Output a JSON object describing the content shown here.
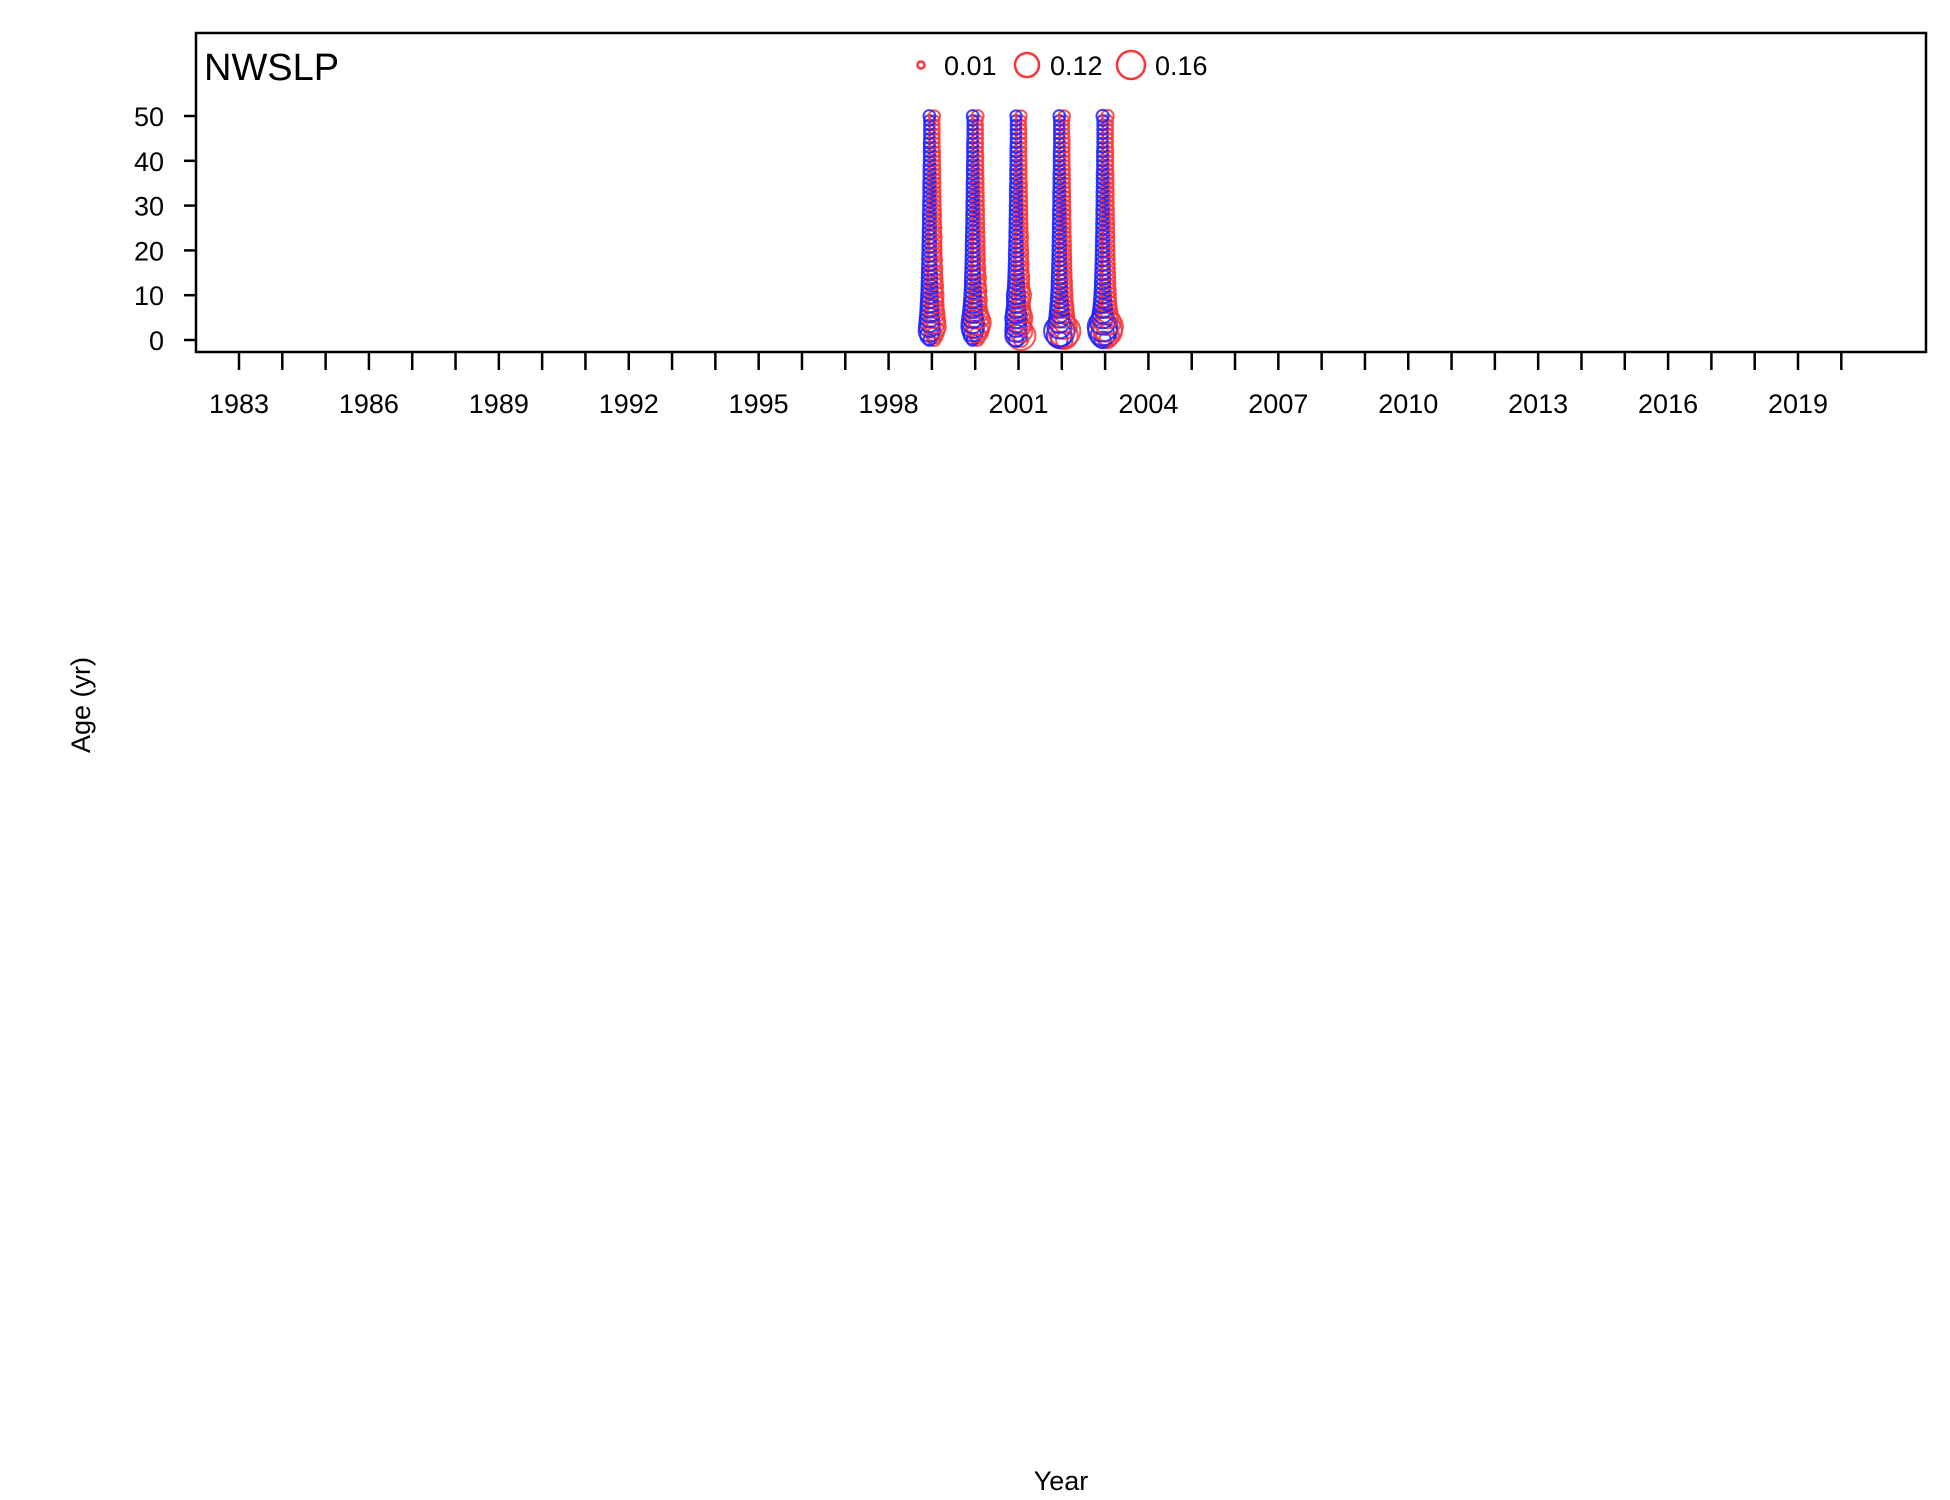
{
  "chart_data": {
    "type": "scatter",
    "panel_label": "NWSLP",
    "xlabel": "Year",
    "ylabel": "Age (yr)",
    "xlim": [
      1982,
      2021
    ],
    "ylim": [
      0,
      52
    ],
    "x_ticks": [
      1983,
      1984,
      1985,
      1986,
      1987,
      1988,
      1989,
      1990,
      1991,
      1992,
      1993,
      1994,
      1995,
      1996,
      1997,
      1998,
      1999,
      2000,
      2001,
      2002,
      2003,
      2004,
      2005,
      2006,
      2007,
      2008,
      2009,
      2010,
      2011,
      2012,
      2013,
      2014,
      2015,
      2016,
      2017,
      2018,
      2019,
      2020
    ],
    "x_tick_labels": [
      "1983",
      "1986",
      "1989",
      "1992",
      "1995",
      "1998",
      "2001",
      "2004",
      "2007",
      "2010",
      "2013",
      "2016",
      "2019"
    ],
    "y_ticks": [
      0,
      10,
      20,
      30,
      40,
      50
    ],
    "y_tick_labels": [
      "0",
      "10",
      "20",
      "30",
      "40",
      "50"
    ],
    "legend": {
      "placement": "top-center",
      "entries": [
        {
          "label": "0.01",
          "value": 0.01
        },
        {
          "label": "0.12",
          "value": 0.12
        },
        {
          "label": "0.16",
          "value": 0.16
        }
      ]
    },
    "colors": {
      "observed": "#ff3333",
      "expected": "#2020ff",
      "axis": "#000000"
    },
    "grid": false,
    "ages": [
      0,
      1,
      2,
      3,
      4,
      5,
      6,
      7,
      8,
      9,
      10,
      11,
      12,
      13,
      14,
      15,
      16,
      17,
      18,
      19,
      20,
      21,
      22,
      23,
      24,
      25,
      26,
      27,
      28,
      29,
      30,
      31,
      32,
      33,
      34,
      35,
      36,
      37,
      38,
      39,
      40,
      41,
      42,
      43,
      44,
      45,
      46,
      47,
      48,
      49,
      50
    ],
    "series": [
      {
        "year": 1999,
        "observed": [
          0.005,
          0.02,
          0.04,
          0.06,
          0.05,
          0.045,
          0.04,
          0.03,
          0.03,
          0.025,
          0.03,
          0.02,
          0.025,
          0.02,
          0.018,
          0.015,
          0.018,
          0.012,
          0.015,
          0.01,
          0.012,
          0.01,
          0.01,
          0.012,
          0.008,
          0.01,
          0.008,
          0.007,
          0.008,
          0.007,
          0.006,
          0.006,
          0.006,
          0.005,
          0.005,
          0.005,
          0.004,
          0.004,
          0.004,
          0.003,
          0.003,
          0.003,
          0.003,
          0.002,
          0.002,
          0.002,
          0.002,
          0.002,
          0.002,
          0.001,
          0.003
        ],
        "expected": [
          0.004,
          0.03,
          0.05,
          0.045,
          0.04,
          0.035,
          0.03,
          0.028,
          0.025,
          0.022,
          0.02,
          0.018,
          0.017,
          0.016,
          0.015,
          0.014,
          0.013,
          0.012,
          0.012,
          0.011,
          0.01,
          0.01,
          0.009,
          0.009,
          0.008,
          0.008,
          0.007,
          0.007,
          0.007,
          0.006,
          0.006,
          0.006,
          0.005,
          0.005,
          0.005,
          0.005,
          0.004,
          0.004,
          0.004,
          0.004,
          0.003,
          0.003,
          0.003,
          0.003,
          0.003,
          0.002,
          0.002,
          0.002,
          0.002,
          0.002,
          0.004
        ]
      },
      {
        "year": 2000,
        "observed": [
          0.004,
          0.02,
          0.05,
          0.07,
          0.09,
          0.06,
          0.04,
          0.03,
          0.025,
          0.03,
          0.02,
          0.025,
          0.02,
          0.015,
          0.02,
          0.012,
          0.015,
          0.01,
          0.012,
          0.01,
          0.01,
          0.009,
          0.01,
          0.008,
          0.008,
          0.007,
          0.007,
          0.006,
          0.006,
          0.006,
          0.005,
          0.005,
          0.005,
          0.004,
          0.004,
          0.004,
          0.004,
          0.003,
          0.003,
          0.003,
          0.003,
          0.003,
          0.002,
          0.002,
          0.002,
          0.002,
          0.002,
          0.002,
          0.002,
          0.001,
          0.004
        ],
        "expected": [
          0.004,
          0.025,
          0.045,
          0.06,
          0.055,
          0.045,
          0.038,
          0.032,
          0.028,
          0.024,
          0.021,
          0.019,
          0.017,
          0.016,
          0.015,
          0.014,
          0.013,
          0.012,
          0.011,
          0.011,
          0.01,
          0.01,
          0.009,
          0.009,
          0.008,
          0.008,
          0.007,
          0.007,
          0.007,
          0.006,
          0.006,
          0.006,
          0.005,
          0.005,
          0.005,
          0.005,
          0.004,
          0.004,
          0.004,
          0.004,
          0.003,
          0.003,
          0.003,
          0.003,
          0.003,
          0.002,
          0.002,
          0.002,
          0.002,
          0.002,
          0.004
        ]
      },
      {
        "year": 2001,
        "observed": [
          0.01,
          0.12,
          0.06,
          0.04,
          0.05,
          0.06,
          0.04,
          0.03,
          0.025,
          0.03,
          0.04,
          0.025,
          0.02,
          0.018,
          0.02,
          0.015,
          0.012,
          0.015,
          0.01,
          0.012,
          0.01,
          0.009,
          0.008,
          0.01,
          0.008,
          0.007,
          0.007,
          0.006,
          0.006,
          0.005,
          0.005,
          0.005,
          0.005,
          0.004,
          0.004,
          0.004,
          0.003,
          0.003,
          0.003,
          0.003,
          0.003,
          0.002,
          0.002,
          0.002,
          0.002,
          0.002,
          0.002,
          0.002,
          0.001,
          0.001,
          0.003
        ],
        "expected": [
          0.01,
          0.05,
          0.05,
          0.045,
          0.045,
          0.05,
          0.04,
          0.032,
          0.028,
          0.028,
          0.03,
          0.022,
          0.019,
          0.017,
          0.016,
          0.014,
          0.013,
          0.012,
          0.011,
          0.011,
          0.01,
          0.009,
          0.009,
          0.008,
          0.008,
          0.007,
          0.007,
          0.007,
          0.006,
          0.006,
          0.006,
          0.005,
          0.005,
          0.005,
          0.005,
          0.004,
          0.004,
          0.004,
          0.004,
          0.003,
          0.003,
          0.003,
          0.003,
          0.003,
          0.002,
          0.002,
          0.002,
          0.002,
          0.002,
          0.002,
          0.003
        ]
      },
      {
        "year": 2002,
        "observed": [
          0.02,
          0.1,
          0.16,
          0.08,
          0.05,
          0.04,
          0.035,
          0.03,
          0.025,
          0.02,
          0.02,
          0.018,
          0.015,
          0.015,
          0.012,
          0.012,
          0.01,
          0.01,
          0.009,
          0.009,
          0.008,
          0.008,
          0.007,
          0.007,
          0.006,
          0.006,
          0.006,
          0.005,
          0.005,
          0.005,
          0.004,
          0.004,
          0.004,
          0.004,
          0.003,
          0.003,
          0.003,
          0.003,
          0.003,
          0.002,
          0.002,
          0.002,
          0.002,
          0.002,
          0.002,
          0.002,
          0.001,
          0.001,
          0.001,
          0.001,
          0.003
        ],
        "expected": [
          0.02,
          0.08,
          0.14,
          0.07,
          0.05,
          0.04,
          0.035,
          0.03,
          0.026,
          0.022,
          0.02,
          0.018,
          0.016,
          0.015,
          0.014,
          0.013,
          0.012,
          0.011,
          0.01,
          0.01,
          0.009,
          0.009,
          0.008,
          0.008,
          0.007,
          0.007,
          0.007,
          0.006,
          0.006,
          0.006,
          0.005,
          0.005,
          0.005,
          0.005,
          0.004,
          0.004,
          0.004,
          0.004,
          0.003,
          0.003,
          0.003,
          0.003,
          0.003,
          0.002,
          0.002,
          0.002,
          0.002,
          0.002,
          0.002,
          0.002,
          0.004
        ]
      },
      {
        "year": 2003,
        "observed": [
          0.02,
          0.06,
          0.12,
          0.14,
          0.09,
          0.05,
          0.04,
          0.03,
          0.025,
          0.02,
          0.02,
          0.018,
          0.016,
          0.015,
          0.014,
          0.013,
          0.012,
          0.011,
          0.01,
          0.01,
          0.009,
          0.009,
          0.008,
          0.008,
          0.007,
          0.007,
          0.007,
          0.006,
          0.006,
          0.006,
          0.005,
          0.005,
          0.005,
          0.005,
          0.004,
          0.004,
          0.004,
          0.004,
          0.003,
          0.003,
          0.003,
          0.003,
          0.003,
          0.002,
          0.002,
          0.002,
          0.002,
          0.002,
          0.002,
          0.002,
          0.005
        ],
        "expected": [
          0.02,
          0.07,
          0.12,
          0.13,
          0.08,
          0.05,
          0.04,
          0.032,
          0.027,
          0.023,
          0.02,
          0.018,
          0.016,
          0.015,
          0.014,
          0.013,
          0.012,
          0.011,
          0.01,
          0.01,
          0.009,
          0.009,
          0.008,
          0.008,
          0.007,
          0.007,
          0.007,
          0.006,
          0.006,
          0.006,
          0.005,
          0.005,
          0.005,
          0.005,
          0.004,
          0.004,
          0.004,
          0.004,
          0.003,
          0.003,
          0.003,
          0.003,
          0.003,
          0.002,
          0.002,
          0.002,
          0.002,
          0.002,
          0.002,
          0.002,
          0.005
        ]
      }
    ]
  }
}
